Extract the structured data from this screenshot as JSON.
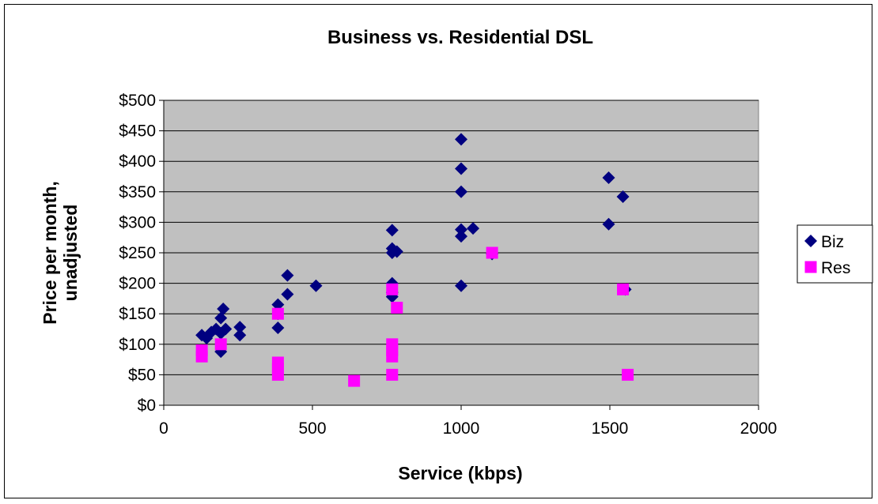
{
  "chart_data": {
    "type": "scatter",
    "title": "Business vs. Residential DSL",
    "xlabel": "Service (kbps)",
    "ylabel_lines": [
      "Price per month,",
      "unadjusted"
    ],
    "xlim": [
      0,
      2000
    ],
    "ylim": [
      0,
      500
    ],
    "x_ticks": [
      0,
      500,
      1000,
      1500,
      2000
    ],
    "x_tick_labels": [
      "0",
      "500",
      "1000",
      "1500",
      "2000"
    ],
    "y_ticks": [
      0,
      50,
      100,
      150,
      200,
      250,
      300,
      350,
      400,
      450,
      500
    ],
    "y_tick_labels": [
      "$0",
      "$50",
      "$100",
      "$150",
      "$200",
      "$250",
      "$300",
      "$350",
      "$400",
      "$450",
      "$500"
    ],
    "grid": "horizontal",
    "plot_background": "#c0c0c0",
    "legend_position": "right",
    "series": [
      {
        "name": "Biz",
        "marker": "diamond",
        "color": "#000080",
        "points": [
          [
            128,
            115
          ],
          [
            144,
            110
          ],
          [
            160,
            120
          ],
          [
            176,
            125
          ],
          [
            192,
            118
          ],
          [
            192,
            88
          ],
          [
            192,
            143
          ],
          [
            200,
            158
          ],
          [
            208,
            125
          ],
          [
            256,
            128
          ],
          [
            256,
            115
          ],
          [
            384,
            165
          ],
          [
            384,
            150
          ],
          [
            384,
            127
          ],
          [
            416,
            182
          ],
          [
            416,
            213
          ],
          [
            512,
            196
          ],
          [
            768,
            287
          ],
          [
            768,
            257
          ],
          [
            768,
            250
          ],
          [
            768,
            200
          ],
          [
            768,
            185
          ],
          [
            768,
            178
          ],
          [
            784,
            252
          ],
          [
            1000,
            436
          ],
          [
            1000,
            388
          ],
          [
            1000,
            350
          ],
          [
            1000,
            288
          ],
          [
            1000,
            277
          ],
          [
            1000,
            196
          ],
          [
            1040,
            290
          ],
          [
            1104,
            248
          ],
          [
            1496,
            373
          ],
          [
            1496,
            297
          ],
          [
            1544,
            342
          ],
          [
            1552,
            190
          ]
        ]
      },
      {
        "name": "Res",
        "marker": "square",
        "color": "#ff00ff",
        "points": [
          [
            128,
            90
          ],
          [
            128,
            80
          ],
          [
            192,
            100
          ],
          [
            384,
            150
          ],
          [
            384,
            70
          ],
          [
            384,
            60
          ],
          [
            384,
            50
          ],
          [
            640,
            40
          ],
          [
            768,
            190
          ],
          [
            768,
            100
          ],
          [
            768,
            90
          ],
          [
            768,
            80
          ],
          [
            768,
            50
          ],
          [
            784,
            160
          ],
          [
            1104,
            250
          ],
          [
            1544,
            190
          ],
          [
            1560,
            50
          ]
        ]
      }
    ]
  }
}
